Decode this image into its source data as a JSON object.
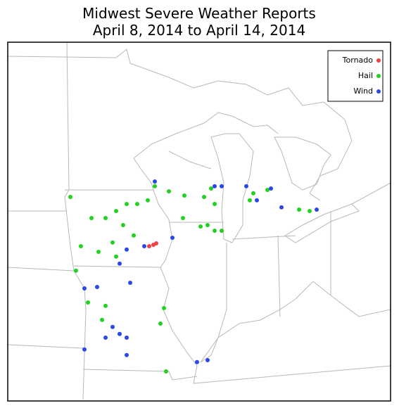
{
  "title": "Midwest Severe Weather Reports",
  "subtitle": "April 8, 2014 to April 14, 2014",
  "legend_location": "top-right",
  "series": [
    {
      "name": "Tornado",
      "color": "#f04040",
      "lon": [
        -92.02,
        -91.78,
        -91.62
      ],
      "lat": [
        41.5,
        41.55,
        41.6
      ]
    },
    {
      "name": "Hail",
      "color": "#22d022",
      "lon": [
        -91.7,
        -90.9,
        -90.02,
        -88.9,
        -88.5,
        -88.3,
        -89.1,
        -88.7,
        -88.3,
        -87.9,
        -90.1,
        -91.18,
        -91.38,
        -91.06,
        -96.5,
        -95.3,
        -94.5,
        -93.9,
        -93.3,
        -92.7,
        -92.1,
        -93.5,
        -94.1,
        -92.9,
        -95.9,
        -94.9,
        -93.9,
        -95.5,
        -94.5,
        -94.7,
        -86.1,
        -86.3,
        -85.3,
        -83.5,
        -82.9,
        -96.18
      ],
      "lat": [
        43.63,
        43.45,
        43.3,
        43.25,
        43.55,
        43.0,
        42.2,
        42.25,
        42.05,
        42.05,
        42.5,
        39.3,
        38.75,
        37.05,
        43.25,
        42.5,
        42.5,
        42.75,
        43.0,
        43.0,
        43.13,
        42.25,
        41.63,
        41.88,
        41.5,
        41.3,
        41.13,
        39.5,
        39.38,
        38.88,
        43.38,
        43.13,
        43.5,
        42.8,
        42.75,
        40.63
      ]
    },
    {
      "name": "Wind",
      "color": "#2a48e8",
      "lon": [
        -91.7,
        -88.3,
        -87.9,
        -86.5,
        -85.1,
        -85.9,
        -84.5,
        -82.5,
        -90.7,
        -92.3,
        -93.3,
        -93.7,
        -95.7,
        -94.98,
        -93.1,
        -94.1,
        -94.5,
        -93.7,
        -93.3,
        -95.7,
        -93.3,
        -89.3,
        -88.7
      ],
      "lat": [
        43.8,
        43.63,
        43.63,
        43.63,
        43.55,
        43.13,
        42.88,
        42.8,
        41.8,
        41.5,
        41.38,
        40.88,
        40.0,
        40.05,
        40.2,
        38.63,
        38.25,
        38.38,
        38.25,
        37.83,
        37.63,
        37.38,
        37.45
      ]
    }
  ]
}
